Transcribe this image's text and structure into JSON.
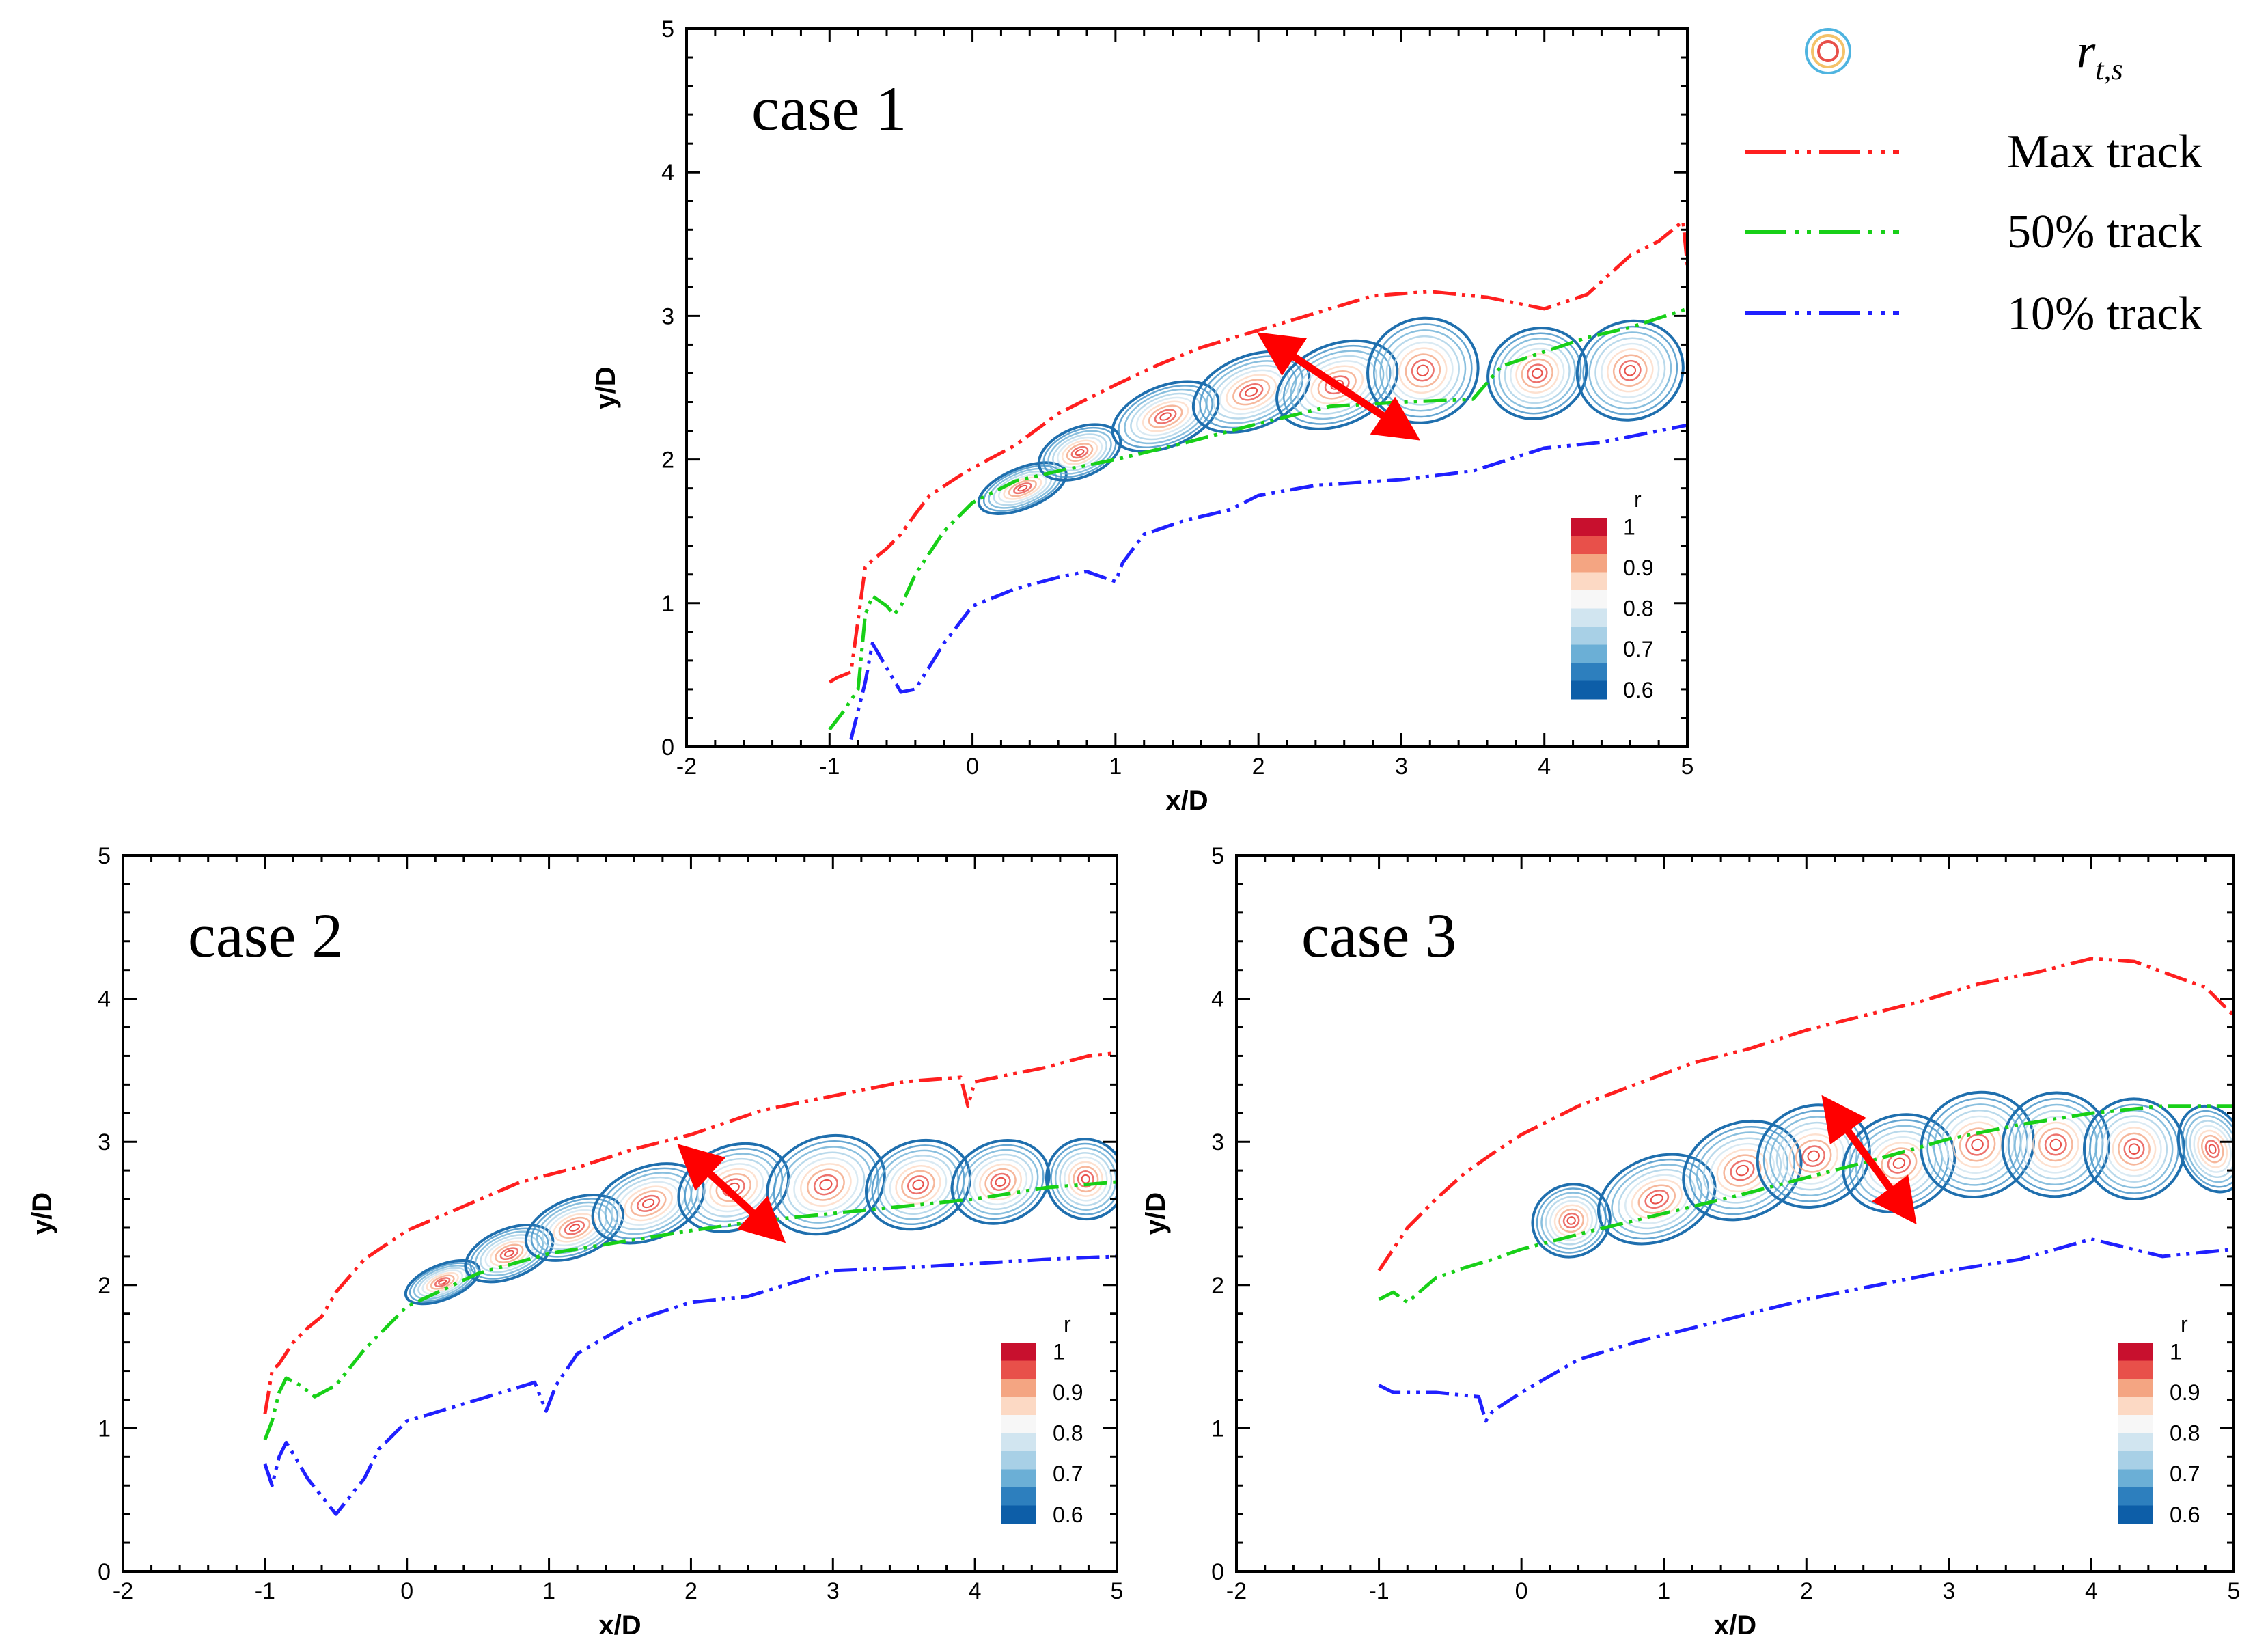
{
  "figure": {
    "legend": [
      {
        "kind": "contour",
        "icon": "concentric-circles-icon",
        "label": "r",
        "label_sub": "t,s"
      },
      {
        "kind": "line",
        "color": "#ff1f1f",
        "label": "Max track"
      },
      {
        "kind": "line",
        "color": "#18d018",
        "label": "50% track"
      },
      {
        "kind": "line",
        "color": "#2020ff",
        "label": "10% track"
      }
    ],
    "colorbar": {
      "title": "r",
      "labels": [
        "1",
        "0.9",
        "0.8",
        "0.7",
        "0.6"
      ],
      "colors": [
        "#c8102e",
        "#e8504a",
        "#f4a582",
        "#fcd9c4",
        "#f7f7f7",
        "#d1e5f0",
        "#a8d0e6",
        "#6bafd6",
        "#2d7fbe",
        "#0d5ea8"
      ]
    }
  },
  "chart_data": [
    {
      "type": "line",
      "case_label": "case 1",
      "xlabel": "x/D",
      "ylabel": "y/D",
      "xlim": [
        -2,
        5
      ],
      "ylim": [
        0,
        5
      ],
      "xticks": [
        "-2",
        "-1",
        "0",
        "1",
        "2",
        "3",
        "4",
        "5"
      ],
      "yticks": [
        "0",
        "1",
        "2",
        "3",
        "4",
        "5"
      ],
      "series": [
        {
          "name": "Max track",
          "color": "#ff1f1f",
          "x": [
            -1.0,
            -0.95,
            -0.9,
            -0.85,
            -0.75,
            -0.7,
            -0.6,
            -0.5,
            -0.4,
            -0.3,
            -0.1,
            0,
            0.3,
            0.6,
            1,
            1.3,
            1.6,
            2,
            2.4,
            2.8,
            3.2,
            3.6,
            4,
            4.3,
            4.6,
            4.8,
            4.97,
            5
          ],
          "y": [
            0.45,
            0.48,
            0.5,
            0.52,
            1.25,
            1.3,
            1.38,
            1.48,
            1.62,
            1.75,
            1.88,
            1.94,
            2.1,
            2.32,
            2.52,
            2.66,
            2.78,
            2.9,
            3.02,
            3.14,
            3.17,
            3.13,
            3.05,
            3.15,
            3.42,
            3.52,
            3.66,
            3.35
          ]
        },
        {
          "name": "50% track",
          "color": "#18d018",
          "x": [
            -1.0,
            -0.9,
            -0.8,
            -0.75,
            -0.7,
            -0.6,
            -0.55,
            -0.5,
            -0.4,
            -0.2,
            0,
            0.3,
            0.6,
            1,
            1.5,
            2,
            2.5,
            3,
            3.5,
            3.7,
            4,
            4.3,
            4.6,
            5
          ],
          "y": [
            0.12,
            0.25,
            0.4,
            0.92,
            1.05,
            0.98,
            0.92,
            0.98,
            1.2,
            1.5,
            1.7,
            1.85,
            1.92,
            2.0,
            2.12,
            2.25,
            2.37,
            2.4,
            2.42,
            2.65,
            2.75,
            2.85,
            2.92,
            3.05
          ]
        },
        {
          "name": "10% track",
          "color": "#2020ff",
          "x": [
            -0.85,
            -0.8,
            -0.75,
            -0.7,
            -0.6,
            -0.5,
            -0.4,
            -0.2,
            0,
            0.3,
            0.6,
            0.8,
            1.0,
            1.05,
            1.2,
            1.5,
            1.8,
            2,
            2.4,
            3,
            3.5,
            4,
            4.4,
            4.8,
            5
          ],
          "y": [
            0.05,
            0.25,
            0.45,
            0.72,
            0.55,
            0.38,
            0.4,
            0.72,
            0.98,
            1.1,
            1.18,
            1.22,
            1.15,
            1.28,
            1.48,
            1.58,
            1.65,
            1.75,
            1.82,
            1.86,
            1.92,
            2.08,
            2.12,
            2.2,
            2.24
          ]
        }
      ],
      "contours": [
        {
          "x": 0.35,
          "y": 1.8,
          "w": 0.65,
          "h": 0.28
        },
        {
          "x": 0.75,
          "y": 2.05,
          "w": 0.6,
          "h": 0.34
        },
        {
          "x": 1.35,
          "y": 2.3,
          "w": 0.78,
          "h": 0.42
        },
        {
          "x": 1.95,
          "y": 2.47,
          "w": 0.85,
          "h": 0.5
        },
        {
          "x": 2.55,
          "y": 2.52,
          "w": 0.88,
          "h": 0.56
        },
        {
          "x": 3.15,
          "y": 2.62,
          "w": 0.78,
          "h": 0.72
        },
        {
          "x": 3.95,
          "y": 2.6,
          "w": 0.7,
          "h": 0.62
        },
        {
          "x": 4.6,
          "y": 2.62,
          "w": 0.75,
          "h": 0.68
        }
      ],
      "arrow": {
        "x1": 2.12,
        "y1": 2.8,
        "x2": 3.0,
        "y2": 2.22
      }
    },
    {
      "type": "line",
      "case_label": "case 2",
      "xlabel": "x/D",
      "ylabel": "y/D",
      "xlim": [
        -2,
        5
      ],
      "ylim": [
        0,
        5
      ],
      "xticks": [
        "-2",
        "-1",
        "0",
        "1",
        "2",
        "3",
        "4",
        "5"
      ],
      "yticks": [
        "0",
        "1",
        "2",
        "3",
        "4",
        "5"
      ],
      "series": [
        {
          "name": "Max track",
          "color": "#ff1f1f",
          "x": [
            -1.0,
            -0.95,
            -0.9,
            -0.8,
            -0.7,
            -0.6,
            -0.5,
            -0.3,
            0,
            0.4,
            0.8,
            1.2,
            1.6,
            2,
            2.5,
            3,
            3.5,
            3.9,
            3.95,
            4,
            4.5,
            4.8,
            5
          ],
          "y": [
            1.1,
            1.4,
            1.45,
            1.6,
            1.7,
            1.78,
            1.95,
            2.18,
            2.38,
            2.55,
            2.72,
            2.82,
            2.95,
            3.05,
            3.22,
            3.32,
            3.42,
            3.45,
            3.25,
            3.42,
            3.52,
            3.6,
            3.62
          ]
        },
        {
          "name": "50% track",
          "color": "#18d018",
          "x": [
            -1.0,
            -0.95,
            -0.9,
            -0.85,
            -0.75,
            -0.65,
            -0.5,
            -0.3,
            0,
            0.5,
            1,
            1.5,
            2,
            2.5,
            3,
            3.5,
            4,
            4.5,
            5
          ],
          "y": [
            0.92,
            1.05,
            1.25,
            1.35,
            1.3,
            1.22,
            1.3,
            1.55,
            1.85,
            2.08,
            2.22,
            2.3,
            2.38,
            2.45,
            2.5,
            2.55,
            2.6,
            2.68,
            2.72
          ]
        },
        {
          "name": "10% track",
          "color": "#2020ff",
          "x": [
            -1.0,
            -0.95,
            -0.9,
            -0.85,
            -0.8,
            -0.7,
            -0.5,
            -0.3,
            -0.2,
            0,
            0.5,
            0.9,
            0.98,
            1.05,
            1.2,
            1.6,
            2,
            2.4,
            3,
            3.5,
            4,
            4.5,
            5
          ],
          "y": [
            0.75,
            0.6,
            0.8,
            0.9,
            0.82,
            0.65,
            0.4,
            0.65,
            0.85,
            1.05,
            1.2,
            1.32,
            1.12,
            1.3,
            1.52,
            1.75,
            1.88,
            1.92,
            2.1,
            2.12,
            2.15,
            2.18,
            2.2
          ]
        }
      ],
      "contours": [
        {
          "x": 0.25,
          "y": 2.02,
          "w": 0.55,
          "h": 0.24
        },
        {
          "x": 0.72,
          "y": 2.22,
          "w": 0.65,
          "h": 0.34
        },
        {
          "x": 1.18,
          "y": 2.4,
          "w": 0.72,
          "h": 0.4
        },
        {
          "x": 1.7,
          "y": 2.57,
          "w": 0.82,
          "h": 0.5
        },
        {
          "x": 2.3,
          "y": 2.68,
          "w": 0.8,
          "h": 0.58
        },
        {
          "x": 2.95,
          "y": 2.7,
          "w": 0.85,
          "h": 0.66
        },
        {
          "x": 3.6,
          "y": 2.7,
          "w": 0.75,
          "h": 0.6
        },
        {
          "x": 4.18,
          "y": 2.72,
          "w": 0.7,
          "h": 0.56
        },
        {
          "x": 4.78,
          "y": 2.74,
          "w": 0.55,
          "h": 0.56
        }
      ],
      "arrow": {
        "x1": 2.02,
        "y1": 2.88,
        "x2": 2.55,
        "y2": 2.4
      }
    },
    {
      "type": "line",
      "case_label": "case 3",
      "xlabel": "x/D",
      "ylabel": "y/D",
      "xlim": [
        -2,
        5
      ],
      "ylim": [
        0,
        5
      ],
      "xticks": [
        "-2",
        "-1",
        "0",
        "1",
        "2",
        "3",
        "4",
        "5"
      ],
      "yticks": [
        "0",
        "1",
        "2",
        "3",
        "4",
        "5"
      ],
      "series": [
        {
          "name": "Max track",
          "color": "#ff1f1f",
          "x": [
            -1.0,
            -0.9,
            -0.8,
            -0.6,
            -0.4,
            -0.2,
            0,
            0.4,
            0.8,
            1.2,
            1.6,
            2,
            2.4,
            2.8,
            3.2,
            3.6,
            4,
            4.3,
            4.6,
            4.8,
            5
          ],
          "y": [
            2.1,
            2.25,
            2.4,
            2.6,
            2.78,
            2.92,
            3.05,
            3.25,
            3.4,
            3.55,
            3.65,
            3.78,
            3.88,
            3.98,
            4.1,
            4.18,
            4.28,
            4.26,
            4.15,
            4.08,
            3.88
          ]
        },
        {
          "name": "50% track",
          "color": "#18d018",
          "x": [
            -1.0,
            -0.9,
            -0.8,
            -0.6,
            -0.4,
            -0.2,
            0,
            0.5,
            1,
            1.5,
            2,
            2.5,
            3,
            3.5,
            4,
            4.5,
            5
          ],
          "y": [
            1.9,
            1.95,
            1.88,
            2.05,
            2.12,
            2.18,
            2.25,
            2.38,
            2.5,
            2.62,
            2.75,
            2.88,
            3.02,
            3.12,
            3.2,
            3.25,
            3.25
          ]
        },
        {
          "name": "10% track",
          "color": "#2020ff",
          "x": [
            -1.0,
            -0.9,
            -0.6,
            -0.3,
            -0.25,
            -0.2,
            0,
            0.4,
            0.8,
            1.2,
            1.6,
            2,
            2.5,
            3,
            3.5,
            4,
            4.5,
            5
          ],
          "y": [
            1.3,
            1.25,
            1.25,
            1.22,
            1.05,
            1.12,
            1.25,
            1.48,
            1.6,
            1.7,
            1.8,
            1.9,
            2.0,
            2.1,
            2.18,
            2.32,
            2.2,
            2.25
          ]
        }
      ],
      "contours": [
        {
          "x": 0.35,
          "y": 2.45,
          "w": 0.55,
          "h": 0.5
        },
        {
          "x": 0.95,
          "y": 2.6,
          "w": 0.85,
          "h": 0.58
        },
        {
          "x": 1.55,
          "y": 2.8,
          "w": 0.85,
          "h": 0.66
        },
        {
          "x": 2.05,
          "y": 2.9,
          "w": 0.8,
          "h": 0.7
        },
        {
          "x": 2.65,
          "y": 2.85,
          "w": 0.8,
          "h": 0.66
        },
        {
          "x": 3.2,
          "y": 2.98,
          "w": 0.8,
          "h": 0.72
        },
        {
          "x": 3.75,
          "y": 2.98,
          "w": 0.75,
          "h": 0.72
        },
        {
          "x": 4.3,
          "y": 2.95,
          "w": 0.7,
          "h": 0.7
        },
        {
          "x": 4.85,
          "y": 2.95,
          "w": 0.45,
          "h": 0.62
        }
      ],
      "arrow": {
        "x1": 2.2,
        "y1": 3.2,
        "x2": 2.68,
        "y2": 2.55
      }
    }
  ]
}
